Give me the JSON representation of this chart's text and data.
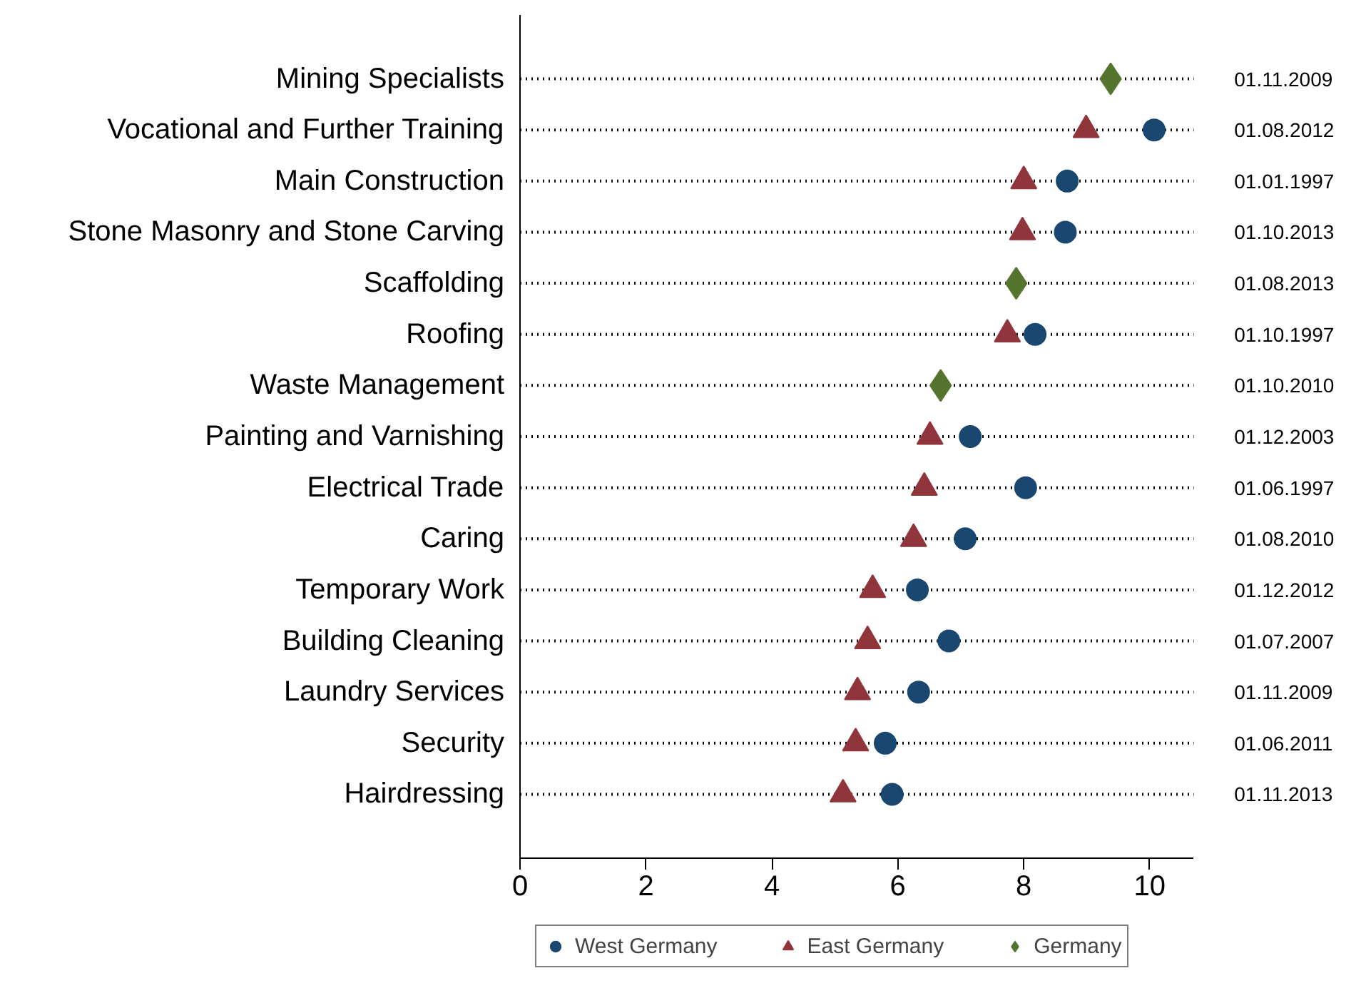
{
  "chart_data": {
    "type": "scatter",
    "categories": [
      "Mining Specialists",
      "Vocational and Further Training",
      "Main Construction",
      "Stone Masonry and Stone Carving",
      "Scaffolding",
      "Roofing",
      "Waste Management",
      "Painting and Varnishing",
      "Electrical Trade",
      "Caring",
      "Temporary Work",
      "Building Cleaning",
      "Laundry Services",
      "Security",
      "Hairdressing"
    ],
    "orientation": "horizontal",
    "series": [
      {
        "name": "West Germany",
        "color": "#1a476f",
        "marker": "circle",
        "values": [
          null,
          10.07,
          8.69,
          8.66,
          null,
          8.18,
          null,
          7.15,
          8.03,
          7.07,
          6.31,
          6.81,
          6.33,
          5.8,
          5.91
        ]
      },
      {
        "name": "East Germany",
        "color": "#90353b",
        "marker": "triangle",
        "values": [
          null,
          8.99,
          8.0,
          7.98,
          null,
          7.74,
          null,
          6.51,
          6.42,
          6.25,
          5.6,
          5.52,
          5.36,
          5.33,
          5.13
        ]
      },
      {
        "name": "Germany",
        "color": "#55752f",
        "marker": "diamond",
        "values": [
          9.38,
          null,
          null,
          null,
          7.88,
          null,
          6.68,
          null,
          null,
          null,
          null,
          null,
          null,
          null,
          null
        ]
      }
    ],
    "xlim": [
      0,
      10.7
    ],
    "xticks": [
      0,
      2,
      4,
      6,
      8,
      10
    ],
    "grid": "y",
    "legend": "bottom",
    "annotations": [
      "01.11.2009",
      "01.08.2012",
      "01.01.1997",
      "01.10.2013",
      "01.08.2013",
      "01.10.1997",
      "01.10.2010",
      "01.12.2003",
      "01.06.1997",
      "01.08.2010",
      "01.12.2012",
      "01.07.2007",
      "01.11.2009",
      "01.06.2011",
      "01.11.2013"
    ]
  }
}
